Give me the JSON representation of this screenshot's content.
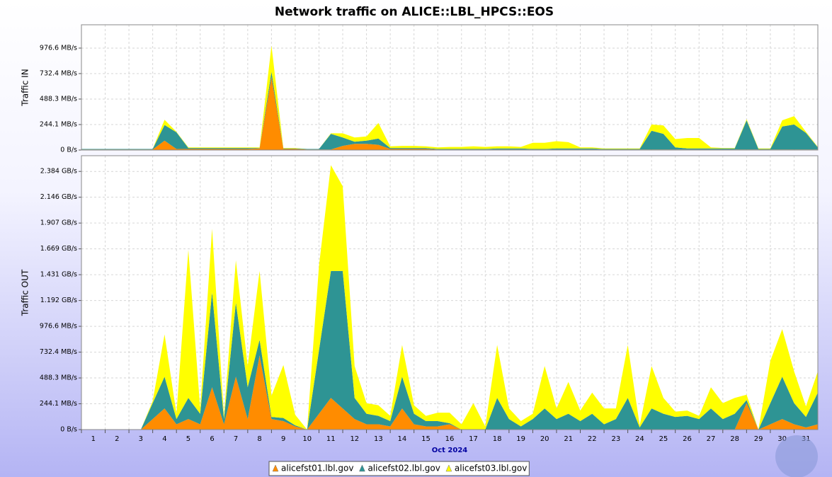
{
  "chart_data": [
    {
      "type": "area",
      "title": "Network traffic on ALICE::LBL_HPCS::EOS",
      "y_label": "Traffic IN",
      "x": [
        0.5,
        1,
        1.5,
        2,
        2.5,
        3,
        3.5,
        4,
        4.5,
        5,
        5.5,
        6,
        6.5,
        7,
        7.5,
        8,
        8.5,
        9,
        9.5,
        10,
        10.5,
        11,
        11.5,
        12,
        12.5,
        13,
        13.5,
        14,
        14.5,
        15,
        15.5,
        16,
        16.5,
        17,
        17.5,
        18,
        18.5,
        19,
        19.5,
        20,
        20.5,
        21,
        21.5,
        22,
        22.5,
        23,
        23.5,
        24,
        24.5,
        25,
        25.5,
        26,
        26.5,
        27,
        27.5,
        28,
        28.5,
        29,
        29.5,
        30,
        30.5,
        31,
        31.5
      ],
      "xlim": [
        0.5,
        31.5
      ],
      "ylim": [
        0,
        1200
      ],
      "yticks": [
        {
          "value": 0,
          "label": "0 B/s"
        },
        {
          "value": 244.1,
          "label": "244.1 MB/s"
        },
        {
          "value": 488.3,
          "label": "488.3 MB/s"
        },
        {
          "value": 732.4,
          "label": "732.4 MB/s"
        },
        {
          "value": 976.6,
          "label": "976.6 MB/s"
        }
      ],
      "series": [
        {
          "name": "alicefst01.lbl.gov",
          "color": "#ff8c00",
          "values": [
            5,
            5,
            5,
            5,
            5,
            5,
            5,
            90,
            10,
            10,
            10,
            10,
            10,
            10,
            10,
            15,
            700,
            10,
            10,
            5,
            5,
            5,
            40,
            60,
            60,
            50,
            10,
            10,
            10,
            10,
            5,
            5,
            5,
            5,
            5,
            5,
            5,
            5,
            5,
            5,
            5,
            5,
            5,
            5,
            5,
            5,
            5,
            5,
            5,
            5,
            5,
            5,
            5,
            5,
            5,
            5,
            5,
            5,
            5,
            5,
            5,
            5,
            5
          ]
        },
        {
          "name": "alicefst02.lbl.gov",
          "color": "#2e9494",
          "values": [
            5,
            5,
            5,
            5,
            5,
            5,
            5,
            150,
            160,
            10,
            10,
            10,
            10,
            10,
            10,
            5,
            50,
            5,
            5,
            5,
            5,
            150,
            80,
            20,
            30,
            60,
            10,
            10,
            10,
            10,
            5,
            5,
            5,
            5,
            5,
            10,
            10,
            10,
            5,
            5,
            10,
            10,
            10,
            10,
            5,
            5,
            5,
            5,
            180,
            150,
            20,
            10,
            10,
            10,
            10,
            10,
            280,
            5,
            5,
            220,
            240,
            160,
            20
          ]
        },
        {
          "name": "alicefst03.lbl.gov",
          "color": "#ffff00",
          "values": [
            0,
            0,
            0,
            0,
            0,
            0,
            0,
            50,
            5,
            5,
            5,
            5,
            5,
            5,
            5,
            5,
            250,
            5,
            5,
            0,
            0,
            5,
            40,
            40,
            40,
            150,
            15,
            20,
            20,
            15,
            15,
            20,
            20,
            25,
            20,
            20,
            20,
            15,
            60,
            60,
            70,
            60,
            10,
            10,
            5,
            5,
            5,
            5,
            60,
            80,
            80,
            100,
            100,
            10,
            5,
            5,
            10,
            5,
            5,
            60,
            80,
            10,
            5
          ]
        }
      ]
    },
    {
      "type": "area",
      "y_label": "Traffic OUT",
      "x_label": "Oct 2024",
      "x": [
        0.5,
        1,
        1.5,
        2,
        2.5,
        3,
        3.5,
        4,
        4.5,
        5,
        5.5,
        6,
        6.5,
        7,
        7.5,
        8,
        8.5,
        9,
        9.5,
        10,
        10.5,
        11,
        11.5,
        12,
        12.5,
        13,
        13.5,
        14,
        14.5,
        15,
        15.5,
        16,
        16.5,
        17,
        17.5,
        18,
        18.5,
        19,
        19.5,
        20,
        20.5,
        21,
        21.5,
        22,
        22.5,
        23,
        23.5,
        24,
        24.5,
        25,
        25.5,
        26,
        26.5,
        27,
        27.5,
        28,
        28.5,
        29,
        29.5,
        30,
        30.5,
        31,
        31.5
      ],
      "xlim": [
        0.5,
        31.5
      ],
      "xticks": [
        1,
        2,
        3,
        4,
        5,
        6,
        7,
        8,
        9,
        10,
        11,
        12,
        13,
        14,
        15,
        16,
        17,
        18,
        19,
        20,
        21,
        22,
        23,
        24,
        25,
        26,
        27,
        28,
        29,
        30,
        31
      ],
      "ylim": [
        0,
        2590
      ],
      "yticks": [
        {
          "value": 0,
          "label": "0 B/s"
        },
        {
          "value": 244.1,
          "label": "244.1 MB/s"
        },
        {
          "value": 488.3,
          "label": "488.3 MB/s"
        },
        {
          "value": 732.4,
          "label": "732.4 MB/s"
        },
        {
          "value": 976.6,
          "label": "976.6 MB/s"
        },
        {
          "value": 1220.7,
          "label": "1.192 GB/s"
        },
        {
          "value": 1464.8,
          "label": "1.431 GB/s"
        },
        {
          "value": 1708.9,
          "label": "1.669 GB/s"
        },
        {
          "value": 1953.1,
          "label": "1.907 GB/s"
        },
        {
          "value": 2197.3,
          "label": "2.146 GB/s"
        },
        {
          "value": 2441.4,
          "label": "2.384 GB/s"
        }
      ],
      "series": [
        {
          "name": "alicefst01.lbl.gov",
          "color": "#ff8c00",
          "values": [
            0,
            0,
            0,
            0,
            0,
            0,
            100,
            200,
            50,
            100,
            50,
            400,
            50,
            500,
            100,
            700,
            100,
            80,
            30,
            0,
            150,
            300,
            200,
            100,
            50,
            50,
            30,
            200,
            50,
            30,
            30,
            50,
            0,
            0,
            0,
            0,
            0,
            0,
            0,
            0,
            0,
            0,
            0,
            0,
            0,
            0,
            0,
            0,
            0,
            0,
            0,
            0,
            0,
            0,
            0,
            0,
            250,
            0,
            50,
            100,
            50,
            20,
            50
          ]
        },
        {
          "name": "alicefst02.lbl.gov",
          "color": "#2e9494",
          "values": [
            0,
            0,
            0,
            0,
            0,
            0,
            150,
            300,
            50,
            200,
            100,
            900,
            50,
            700,
            300,
            150,
            20,
            30,
            10,
            0,
            600,
            1200,
            1300,
            200,
            100,
            80,
            50,
            300,
            100,
            50,
            50,
            10,
            0,
            0,
            0,
            300,
            100,
            30,
            100,
            200,
            100,
            150,
            80,
            150,
            50,
            100,
            300,
            20,
            200,
            150,
            120,
            130,
            100,
            200,
            100,
            150,
            30,
            0,
            200,
            400,
            200,
            100,
            300
          ]
        },
        {
          "name": "alicefst03.lbl.gov",
          "color": "#ffff00",
          "values": [
            0,
            0,
            0,
            0,
            0,
            0,
            20,
            400,
            50,
            1400,
            50,
            600,
            30,
            400,
            200,
            650,
            200,
            500,
            100,
            0,
            800,
            1000,
            800,
            300,
            100,
            100,
            50,
            300,
            80,
            50,
            80,
            100,
            50,
            250,
            30,
            500,
            100,
            50,
            50,
            400,
            100,
            300,
            100,
            200,
            150,
            100,
            500,
            20,
            400,
            150,
            50,
            50,
            30,
            200,
            150,
            150,
            50,
            0,
            400,
            450,
            300,
            100,
            200
          ]
        }
      ]
    }
  ]
}
